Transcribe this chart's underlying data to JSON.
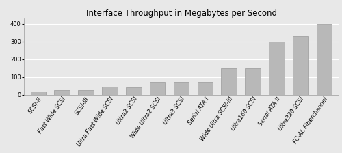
{
  "title": "Interface Throughput in Megabytes per Second",
  "categories": [
    "SCSI-II",
    "Fast Wide SCSI",
    "SCSI-III",
    "Ultra Fast Wide SCSI",
    "Ultra2 SCSI",
    "Wide Ultra2 SCSI",
    "Ultra3 SCSI",
    "Serial ATA I",
    "Wide Ultra SCSI-III",
    "Ultra160 SCSI",
    "Serial ATA II",
    "Ultra320 SCSI",
    "FC-AL Fiberchannel"
  ],
  "values": [
    20,
    27,
    27,
    45,
    43,
    73,
    73,
    72,
    150,
    150,
    300,
    330,
    397
  ],
  "bar_color": "#b8b8b8",
  "bar_edge_color": "#999999",
  "plot_bg_color": "#e8e8e8",
  "fig_bg_color": "#e8e8e8",
  "ylim": [
    0,
    430
  ],
  "yticks": [
    0,
    100,
    200,
    300,
    400
  ],
  "title_fontsize": 8.5,
  "tick_fontsize": 6.0,
  "grid_color": "#ffffff",
  "grid_linewidth": 0.8,
  "bar_width": 0.65
}
